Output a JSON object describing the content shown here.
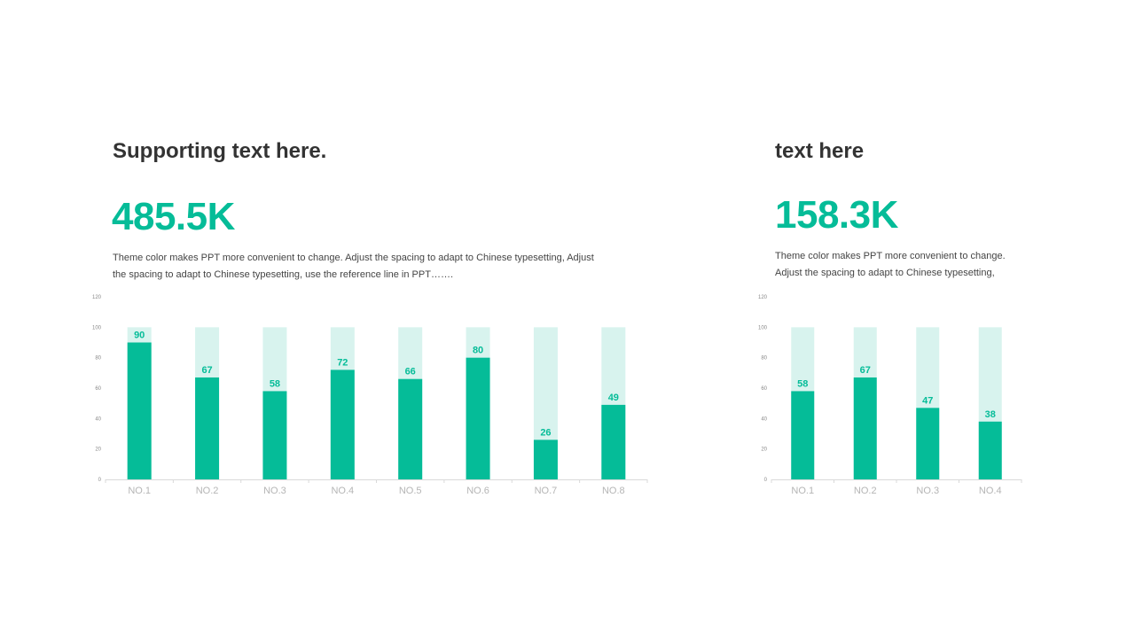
{
  "left": {
    "heading": "Supporting text here.",
    "big_number": "485.5K",
    "description": "Theme color makes PPT more convenient  to change. Adjust the spacing to adapt to Chinese typesetting, Adjust the spacing to adapt to Chinese typesetting, use the reference line in PPT……."
  },
  "right": {
    "heading": "text here",
    "big_number": "158.3K",
    "description": "Theme color makes PPT more convenient  to change. Adjust the spacing to adapt to Chinese typesetting,"
  },
  "colors": {
    "accent": "#05bc98",
    "bar_background": "#d8f3ee",
    "axis": "#d9d9d9"
  },
  "chart_data": [
    {
      "type": "bar",
      "categories": [
        "NO.1",
        "NO.2",
        "NO.3",
        "NO.4",
        "NO.5",
        "NO.6",
        "NO.7",
        "NO.8"
      ],
      "values": [
        90,
        67,
        58,
        72,
        66,
        80,
        26,
        49
      ],
      "background_value": 100,
      "ylim": [
        0,
        120
      ],
      "yticks": [
        0,
        20,
        40,
        60,
        80,
        100,
        120
      ],
      "grid": false,
      "data_labels": true
    },
    {
      "type": "bar",
      "categories": [
        "NO.1",
        "NO.2",
        "NO.3",
        "NO.4"
      ],
      "values": [
        58,
        67,
        47,
        38
      ],
      "background_value": 100,
      "ylim": [
        0,
        120
      ],
      "yticks": [
        0,
        20,
        40,
        60,
        80,
        100,
        120
      ],
      "grid": false,
      "data_labels": true
    }
  ]
}
